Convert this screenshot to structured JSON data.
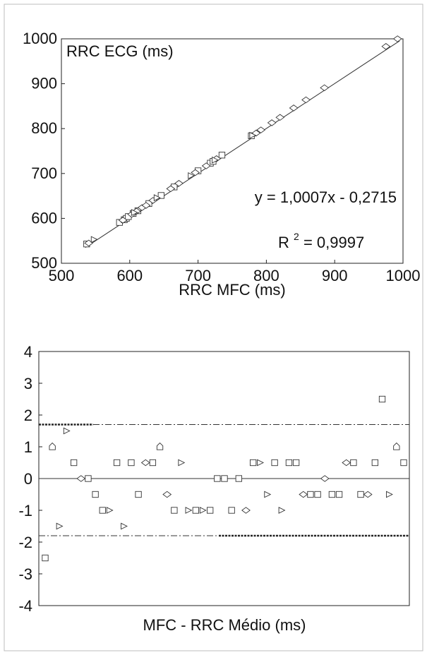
{
  "chart_data": [
    {
      "type": "scatter",
      "title": "",
      "xlabel": "RRC MFC (ms)",
      "ylabel": "RRC ECG (ms)",
      "xlim": [
        500,
        1000
      ],
      "ylim": [
        500,
        1000
      ],
      "xticks": [
        "500",
        "600",
        "700",
        "800",
        "900",
        "1000"
      ],
      "yticks": [
        "500",
        "600",
        "700",
        "800",
        "900",
        "1000"
      ],
      "regression": {
        "slope": 1.0007,
        "intercept": -0.2715
      },
      "annotations": {
        "equation": "y = 1,0007x - 0,2715",
        "r2_prefix": "R",
        "r2_exp": "2",
        "r2_value": "= 0,9997"
      },
      "grid": false,
      "series": [
        {
          "marker": "square",
          "points": [
            [
              537,
              543
            ],
            [
              585,
              591
            ],
            [
              592,
              597
            ],
            [
              595,
              600
            ],
            [
              598,
              604
            ],
            [
              605,
              611
            ],
            [
              612,
              617
            ],
            [
              628,
              633
            ],
            [
              646,
              651
            ],
            [
              665,
              670
            ],
            [
              700,
              706
            ],
            [
              718,
              723
            ],
            [
              722,
              727
            ],
            [
              735,
              741
            ],
            [
              778,
              784
            ]
          ]
        },
        {
          "marker": "diamond",
          "points": [
            [
              540,
              545
            ],
            [
              590,
              596
            ],
            [
              603,
              609
            ],
            [
              610,
              616
            ],
            [
              618,
              624
            ],
            [
              624,
              629
            ],
            [
              634,
              640
            ],
            [
              660,
              666
            ],
            [
              672,
              678
            ],
            [
              696,
              702
            ],
            [
              712,
              717
            ],
            [
              727,
              733
            ],
            [
              785,
              790
            ],
            [
              792,
              797
            ],
            [
              808,
              813
            ],
            [
              820,
              825
            ],
            [
              840,
              846
            ],
            [
              858,
              864
            ],
            [
              885,
              891
            ],
            [
              975,
              983
            ],
            [
              992,
              1000
            ]
          ]
        },
        {
          "marker": "triangle",
          "points": [
            [
              548,
              553
            ],
            [
              607,
              613
            ],
            [
              640,
              646
            ],
            [
              690,
              695
            ],
            [
              725,
              730
            ],
            [
              780,
              785
            ]
          ]
        }
      ]
    },
    {
      "type": "scatter",
      "title": "",
      "xlabel": "MFC - RRC Médio (ms)",
      "ylabel": "",
      "ylim": [
        -4,
        4
      ],
      "yticks": [
        "4",
        "3",
        "2",
        "1",
        "0",
        "-1",
        "-2",
        "-3",
        "-4"
      ],
      "reference_lines": {
        "mean": 0,
        "upper_limit": 1.7,
        "lower_limit": -1.8
      },
      "grid": false,
      "points": [
        {
          "x": 1,
          "y": -2.5,
          "marker": "square"
        },
        {
          "x": 2,
          "y": 1,
          "marker": "pentagon"
        },
        {
          "x": 3,
          "y": -1.5,
          "marker": "triangle"
        },
        {
          "x": 4,
          "y": 1.5,
          "marker": "triangle"
        },
        {
          "x": 5,
          "y": 0.5,
          "marker": "square"
        },
        {
          "x": 6,
          "y": 0,
          "marker": "diamond"
        },
        {
          "x": 7,
          "y": 0,
          "marker": "square"
        },
        {
          "x": 8,
          "y": -0.5,
          "marker": "square"
        },
        {
          "x": 9,
          "y": -1,
          "marker": "square"
        },
        {
          "x": 10,
          "y": -1,
          "marker": "triangle"
        },
        {
          "x": 11,
          "y": 0.5,
          "marker": "square"
        },
        {
          "x": 12,
          "y": -1.5,
          "marker": "triangle"
        },
        {
          "x": 13,
          "y": 0.5,
          "marker": "square"
        },
        {
          "x": 14,
          "y": -0.5,
          "marker": "square"
        },
        {
          "x": 15,
          "y": 0.5,
          "marker": "diamond"
        },
        {
          "x": 16,
          "y": 0.5,
          "marker": "square"
        },
        {
          "x": 17,
          "y": 1,
          "marker": "pentagon"
        },
        {
          "x": 18,
          "y": -0.5,
          "marker": "diamond"
        },
        {
          "x": 19,
          "y": -1,
          "marker": "square"
        },
        {
          "x": 20,
          "y": 0.5,
          "marker": "triangle"
        },
        {
          "x": 21,
          "y": -1,
          "marker": "triangle"
        },
        {
          "x": 22,
          "y": -1,
          "marker": "square"
        },
        {
          "x": 23,
          "y": -1,
          "marker": "triangle"
        },
        {
          "x": 24,
          "y": -1,
          "marker": "square"
        },
        {
          "x": 25,
          "y": 0,
          "marker": "square"
        },
        {
          "x": 26,
          "y": 0,
          "marker": "square"
        },
        {
          "x": 27,
          "y": -1,
          "marker": "square"
        },
        {
          "x": 28,
          "y": 0,
          "marker": "square"
        },
        {
          "x": 29,
          "y": -1,
          "marker": "diamond"
        },
        {
          "x": 30,
          "y": 0.5,
          "marker": "square"
        },
        {
          "x": 31,
          "y": 0.5,
          "marker": "triangle"
        },
        {
          "x": 32,
          "y": -0.5,
          "marker": "triangle"
        },
        {
          "x": 33,
          "y": 0.5,
          "marker": "square"
        },
        {
          "x": 34,
          "y": -1,
          "marker": "triangle"
        },
        {
          "x": 35,
          "y": 0.5,
          "marker": "square"
        },
        {
          "x": 36,
          "y": 0.5,
          "marker": "square"
        },
        {
          "x": 37,
          "y": -0.5,
          "marker": "diamond"
        },
        {
          "x": 38,
          "y": -0.5,
          "marker": "square"
        },
        {
          "x": 39,
          "y": -0.5,
          "marker": "square"
        },
        {
          "x": 40,
          "y": 0,
          "marker": "diamond"
        },
        {
          "x": 41,
          "y": -0.5,
          "marker": "square"
        },
        {
          "x": 42,
          "y": -0.5,
          "marker": "square"
        },
        {
          "x": 43,
          "y": 0.5,
          "marker": "diamond"
        },
        {
          "x": 44,
          "y": 0.5,
          "marker": "square"
        },
        {
          "x": 45,
          "y": -0.5,
          "marker": "square"
        },
        {
          "x": 46,
          "y": -0.5,
          "marker": "diamond"
        },
        {
          "x": 47,
          "y": 0.5,
          "marker": "square"
        },
        {
          "x": 48,
          "y": 2.5,
          "marker": "square"
        },
        {
          "x": 49,
          "y": -0.5,
          "marker": "triangle"
        },
        {
          "x": 50,
          "y": 1,
          "marker": "pentagon"
        },
        {
          "x": 51,
          "y": 0.5,
          "marker": "square"
        }
      ]
    }
  ]
}
